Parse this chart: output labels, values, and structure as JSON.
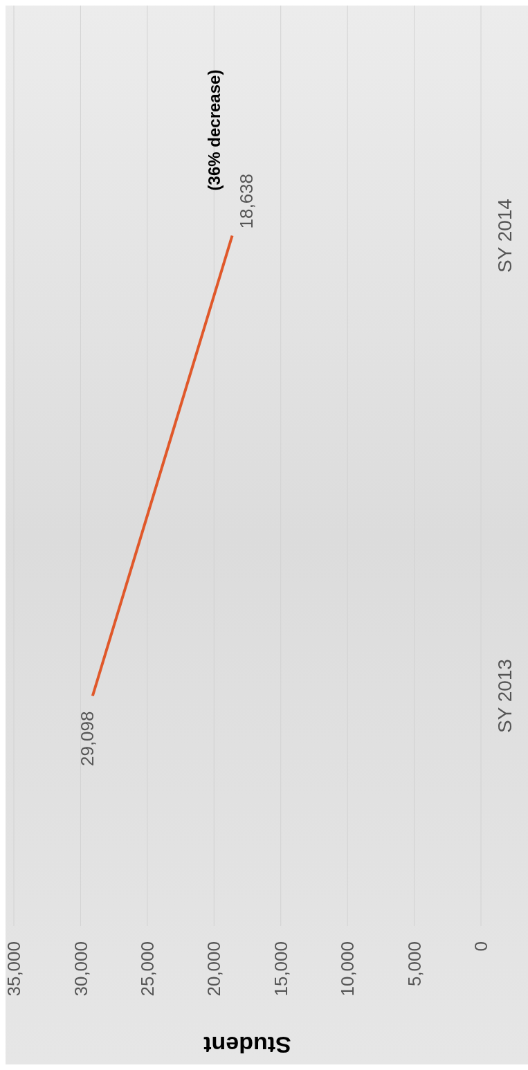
{
  "chart_data": {
    "type": "line",
    "orientation": "horizontal",
    "categories": [
      "SY 2014",
      "SY 2013"
    ],
    "series": [
      {
        "color": "#e0582a",
        "values": [
          18638,
          29098
        ],
        "value_labels": [
          "18,638",
          "29,098"
        ]
      }
    ],
    "xlabel": "Student",
    "xlim": [
      35000,
      0
    ],
    "xticks": [
      {
        "value": 35000,
        "label": "35,000"
      },
      {
        "value": 30000,
        "label": "30,000"
      },
      {
        "value": 25000,
        "label": "25,000"
      },
      {
        "value": 20000,
        "label": "20,000"
      },
      {
        "value": 15000,
        "label": "15,000"
      },
      {
        "value": 10000,
        "label": "10,000"
      },
      {
        "value": 5000,
        "label": "5,000"
      },
      {
        "value": 0,
        "label": "0"
      }
    ],
    "grid": "x",
    "marker": "none",
    "line_style": "solid",
    "legend": false,
    "annotations": [
      "(36% decrease)"
    ]
  }
}
